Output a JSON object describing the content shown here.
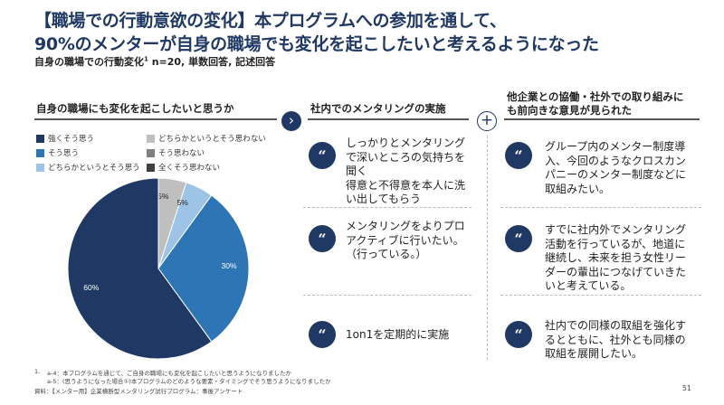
{
  "header": {
    "title_bracket": "【職場での行動意欲の変化】",
    "title_rest": "本プログラムへの参加を通して、",
    "title2_highlight": "90%",
    "title2_rest": "のメンターが自身の職場でも変化を起こしたいと考えるようになった",
    "subtitle_main": "自身の職場での行動変化",
    "subtitle_sup": "1",
    "subtitle_rest": " n=20, 単数回答, 記述回答"
  },
  "left_section": {
    "heading": "自身の職場にも変化を起こしたいと思うか"
  },
  "middle_section": {
    "heading": "社内でのメンタリングの実施",
    "comments": [
      "しっかりとメンタリングで深いところの気持ちを聞く\n得意と不得意を本人に洗い出してもらう",
      "メンタリングをよりプロアクティブに行いたい。（行っている。）",
      "1on1を定期的に実施"
    ]
  },
  "right_section": {
    "heading_line1": "他企業との協働・社外での取り組みに",
    "heading_line2": "も前向きな意見が見られた",
    "comments": [
      "グループ内のメンター制度導入、今回のようなクロスカンパニーのメンター制度などに取組みたい。",
      "すでに社内外でメンタリング活動を行っているが、地道に継続し、未来を担う女性リーダーの輩出につなげていきたいと考えている。",
      "社内での同様の取組を強化するとともに、社外とも同様の取組を展開したい。"
    ]
  },
  "icons": {
    "arrow": "chevron-right-icon",
    "plus": "plus-icon",
    "quote": "quote-icon",
    "quote_glyph": "“"
  },
  "colors": {
    "navy": "#1f3864",
    "blue": "#2e75b6",
    "light_blue": "#9dc3e6",
    "light_gray": "#bfbfbf",
    "gray": "#808080",
    "dark_gray": "#404040"
  },
  "chart_data": {
    "type": "pie",
    "categories": [
      "強くそう思う",
      "そう思う",
      "どちらかというとそう思う",
      "どちらかというとそう思わない",
      "そう思わない",
      "全くそう思わない"
    ],
    "values": [
      60,
      30,
      5,
      5,
      0,
      0
    ],
    "labels": [
      "60%",
      "30%",
      "5%",
      "5%",
      "0%",
      "0%"
    ],
    "colors": [
      "#1f3864",
      "#2e75b6",
      "#9dc3e6",
      "#bfbfbf",
      "#808080",
      "#404040"
    ],
    "legend_position": "top"
  },
  "footnotes": {
    "note1_num": "1.",
    "note1_a": "a-4：本プログラムを通じて、ご自身の職場にも変化を起こしたいと思うようになりましたか",
    "note1_b": "a-5：(思うようになった場合①)本プログラムのどのような要素・タイミングでそう思うようになりましたか",
    "source": "資料：【メンター用】企業横断型メンタリング試行プログラム：事後アンケート"
  },
  "page_number": "51"
}
